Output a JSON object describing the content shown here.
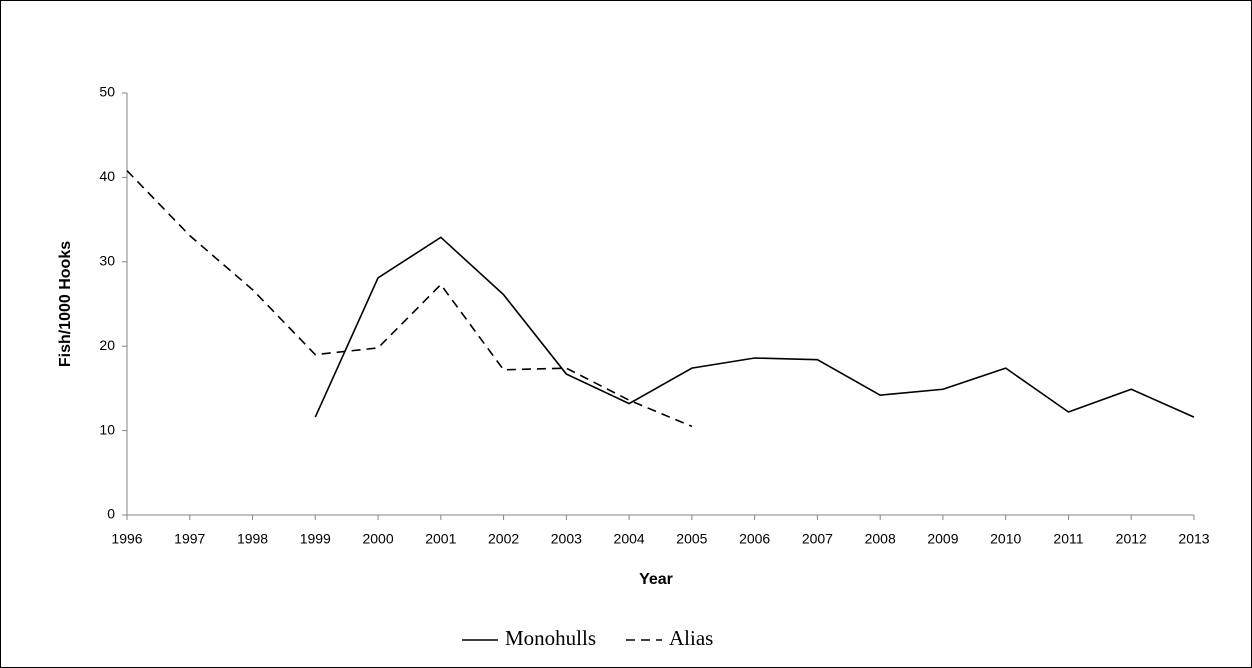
{
  "chart_data": {
    "type": "line",
    "x_label": "Year",
    "y_label": "Fish/1000 Hooks",
    "x": [
      1996,
      1997,
      1998,
      1999,
      2000,
      2001,
      2002,
      2003,
      2004,
      2005,
      2006,
      2007,
      2008,
      2009,
      2010,
      2011,
      2012,
      2013
    ],
    "xlim": [
      1996,
      2013
    ],
    "xticks": [
      1996,
      1997,
      1998,
      1999,
      2000,
      2001,
      2002,
      2003,
      2004,
      2005,
      2006,
      2007,
      2008,
      2009,
      2010,
      2011,
      2012,
      2013
    ],
    "ylim": [
      0,
      50
    ],
    "yticks": [
      0,
      10,
      20,
      30,
      40,
      50
    ],
    "grid": false,
    "legend": "bottom",
    "series": [
      {
        "name": "Monohulls",
        "color": "#000000",
        "style": "solid",
        "values": [
          null,
          null,
          null,
          11.6,
          28.1,
          32.9,
          26.1,
          16.7,
          13.2,
          17.4,
          18.6,
          18.4,
          14.2,
          14.9,
          17.4,
          12.2,
          14.9,
          11.6
        ]
      },
      {
        "name": "Alias",
        "color": "#000000",
        "style": "dashed",
        "values": [
          40.8,
          33.1,
          26.7,
          19.0,
          19.8,
          27.3,
          17.2,
          17.4,
          13.6,
          10.5,
          null,
          null,
          null,
          null,
          null,
          null,
          null,
          null
        ]
      }
    ]
  }
}
